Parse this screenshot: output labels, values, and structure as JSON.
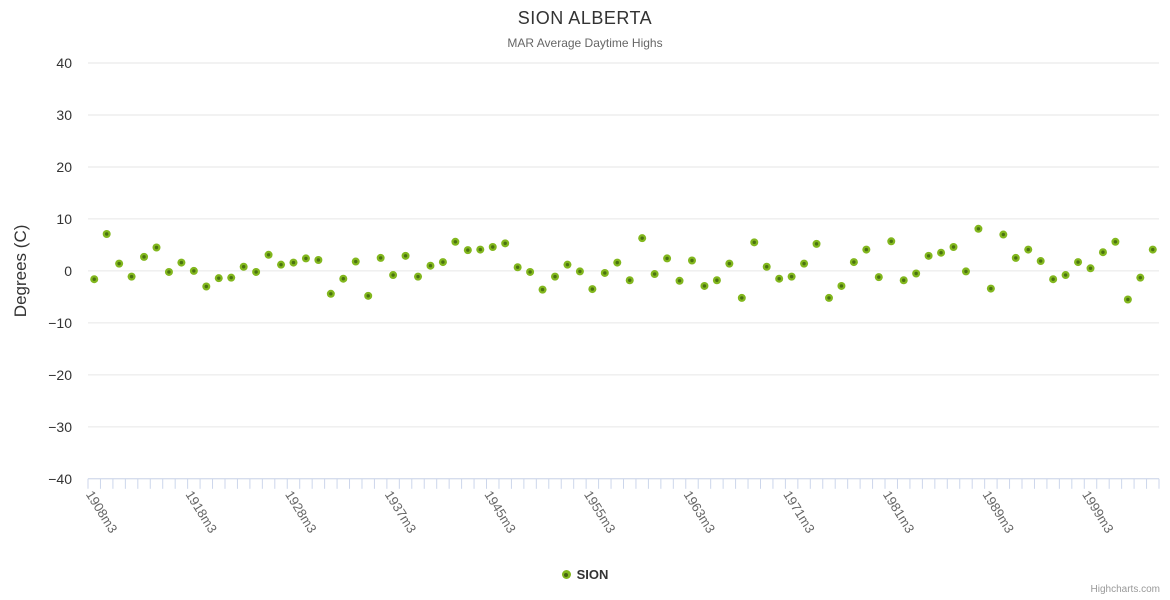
{
  "chart": {
    "title": "SION ALBERTA",
    "subtitle": "MAR Average Daytime Highs",
    "credits": "Highcharts.com"
  },
  "chart_data": {
    "type": "scatter",
    "title": "SION ALBERTA",
    "subtitle": "MAR Average Daytime Highs",
    "xlabel": "",
    "ylabel": "Degrees (C)",
    "ylim": [
      -40,
      40
    ],
    "y_ticks": [
      40,
      30,
      20,
      10,
      0,
      -10,
      -20,
      -30,
      -40
    ],
    "grid": true,
    "legend_position": "bottom-center",
    "x_count": 86,
    "x_tick_labels": [
      {
        "index": 0,
        "label": "1908m3"
      },
      {
        "index": 8,
        "label": "1918m3"
      },
      {
        "index": 16,
        "label": "1928m3"
      },
      {
        "index": 24,
        "label": "1937m3"
      },
      {
        "index": 32,
        "label": "1945m3"
      },
      {
        "index": 40,
        "label": "1955m3"
      },
      {
        "index": 48,
        "label": "1963m3"
      },
      {
        "index": 56,
        "label": "1971m3"
      },
      {
        "index": 64,
        "label": "1981m3"
      },
      {
        "index": 72,
        "label": "1989m3"
      },
      {
        "index": 80,
        "label": "1999m3"
      }
    ],
    "series": [
      {
        "name": "SION",
        "color": "#82b71e",
        "marker_core_color": "#4a7210",
        "values": [
          -1.6,
          7.1,
          1.4,
          -1.1,
          2.7,
          4.5,
          -0.2,
          1.6,
          0.0,
          -3.0,
          -1.4,
          -1.3,
          0.8,
          -0.2,
          3.1,
          1.2,
          1.6,
          2.4,
          2.1,
          -4.4,
          -1.5,
          1.8,
          -4.8,
          2.5,
          -0.8,
          2.9,
          -1.1,
          1.0,
          1.7,
          5.6,
          4.0,
          4.1,
          4.6,
          5.3,
          0.7,
          -0.2,
          -3.6,
          -1.1,
          1.2,
          -0.1,
          -3.5,
          -0.4,
          1.6,
          -1.8,
          6.3,
          -0.6,
          2.4,
          -1.9,
          2.0,
          -2.9,
          -1.8,
          1.4,
          -5.2,
          5.5,
          0.8,
          -1.5,
          -1.1,
          1.4,
          5.2,
          -5.2,
          -2.9,
          1.7,
          4.1,
          -1.2,
          5.7,
          -1.8,
          -0.5,
          2.9,
          3.5,
          4.6,
          -0.1,
          8.1,
          -3.4,
          7.0,
          2.5,
          4.1,
          1.9,
          -1.6,
          -0.8,
          1.7,
          0.5,
          3.6,
          5.6,
          -5.5,
          -1.3,
          4.1
        ]
      }
    ],
    "colors": {
      "gridline": "#e6e6e6",
      "axis_line": "#ccd6eb",
      "y_label": "#333333",
      "x_label": "#666666",
      "axis_title": "#333333"
    }
  }
}
